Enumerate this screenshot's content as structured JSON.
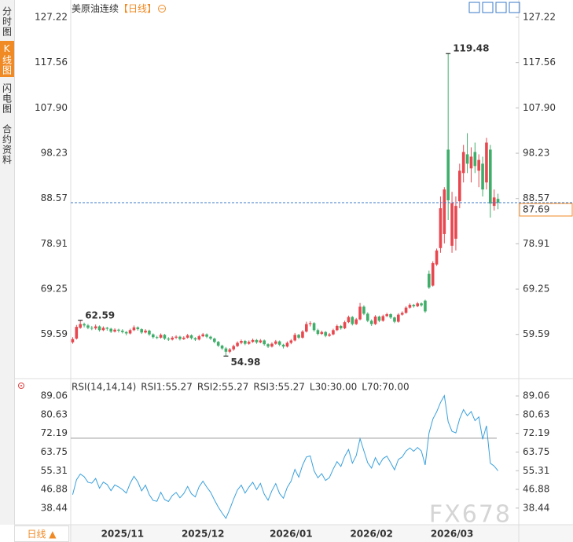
{
  "sidebar": [
    "分时图",
    "K线图",
    "闪电图",
    "合约资料"
  ],
  "period_button": "日线 ▲",
  "watermark": "FX678",
  "chart_data": [
    {
      "type": "candlestick",
      "title": "美原油连续",
      "period": "【日线】",
      "up_color": "#e8474f",
      "down_color": "#3fae6a",
      "last_color": "#f08a24",
      "last_line_color": "#3a78c8",
      "categories": [
        null,
        null,
        null,
        null,
        null,
        null,
        null,
        null,
        null,
        null,
        null,
        null,
        null,
        "2025/11",
        null,
        null,
        null,
        null,
        null,
        null,
        null,
        null,
        null,
        null,
        null,
        null,
        null,
        null,
        null,
        null,
        null,
        null,
        null,
        null,
        "2025/12",
        null,
        null,
        null,
        null,
        null,
        null,
        null,
        null,
        null,
        null,
        null,
        null,
        null,
        null,
        null,
        null,
        null,
        null,
        null,
        null,
        null,
        null,
        "2026/01",
        null,
        null,
        null,
        null,
        null,
        null,
        null,
        null,
        null,
        null,
        null,
        null,
        null,
        null,
        null,
        null,
        null,
        null,
        null,
        null,
        "2026/02",
        null,
        null,
        null,
        null,
        null,
        null,
        null,
        null,
        null,
        null,
        null,
        null,
        null,
        null,
        null,
        null,
        null,
        null,
        null,
        null,
        "2026/03",
        null,
        null,
        null,
        null,
        null,
        null,
        null,
        null,
        null,
        null,
        null,
        null
      ],
      "open": [
        57.9,
        58.7,
        61.0,
        61.8,
        61.5,
        61.0,
        60.9,
        61.3,
        60.5,
        61.0,
        60.8,
        60.2,
        60.6,
        60.4,
        60.1,
        59.8,
        60.5,
        61.1,
        60.7,
        60.0,
        60.4,
        59.6,
        59.0,
        58.9,
        59.5,
        58.7,
        58.5,
        58.9,
        59.1,
        58.6,
        58.9,
        59.4,
        58.8,
        58.5,
        59.2,
        59.6,
        59.1,
        58.7,
        58.0,
        57.2,
        56.6,
        55.9,
        56.4,
        57.1,
        57.8,
        58.2,
        57.6,
        58.0,
        58.4,
        57.9,
        58.3,
        57.5,
        57.0,
        57.6,
        58.1,
        57.4,
        57.0,
        57.8,
        58.3,
        59.5,
        58.9,
        60.2,
        61.8,
        62.0,
        60.5,
        59.7,
        60.1,
        59.3,
        59.6,
        60.5,
        61.4,
        60.9,
        62.2,
        63.3,
        61.8,
        62.8,
        65.5,
        64.0,
        62.5,
        61.8,
        63.4,
        62.5,
        63.5,
        63.9,
        63.2,
        62.3,
        63.8,
        64.2,
        65.3,
        65.9,
        65.6,
        66.2,
        66.8,
        72.5,
        70.0,
        74.5,
        78.0,
        81.0,
        99.0,
        78.5,
        80.0,
        88.0,
        94.0,
        98.0,
        95.0,
        98.5,
        94.5,
        96.0,
        92.0,
        99.0,
        87.0,
        88.5
      ],
      "high": [
        59.0,
        61.6,
        62.59,
        62.1,
        61.8,
        61.4,
        61.7,
        61.5,
        61.3,
        61.2,
        61.0,
        60.9,
        60.8,
        60.7,
        60.3,
        60.8,
        61.5,
        61.3,
        60.9,
        60.7,
        60.6,
        59.8,
        59.3,
        59.8,
        59.7,
        59.0,
        59.2,
        59.4,
        59.3,
        59.2,
        59.7,
        59.6,
        59.0,
        59.5,
        59.9,
        59.8,
        59.3,
        58.9,
        58.2,
        57.4,
        56.9,
        56.7,
        57.4,
        58.1,
        58.5,
        58.4,
        58.3,
        58.7,
        58.6,
        58.6,
        58.5,
        57.7,
        57.9,
        58.4,
        58.3,
        57.6,
        58.1,
        58.6,
        59.9,
        59.7,
        60.5,
        62.3,
        62.4,
        62.2,
        60.8,
        60.4,
        60.3,
        59.9,
        60.8,
        61.7,
        61.6,
        62.5,
        63.6,
        63.5,
        63.1,
        66.3,
        65.8,
        64.3,
        62.8,
        63.7,
        63.6,
        63.8,
        64.2,
        64.1,
        63.4,
        64.1,
        64.5,
        65.6,
        66.2,
        66.1,
        66.5,
        66.4,
        67.0,
        73.2,
        75.2,
        77.9,
        89.0,
        91.0,
        119.48,
        90.0,
        89.0,
        96.0,
        100.0,
        102.5,
        99.5,
        100.5,
        98.0,
        97.5,
        101.5,
        100.0,
        90.5,
        89.6
      ],
      "low": [
        57.6,
        58.5,
        60.8,
        61.1,
        60.7,
        60.5,
        60.6,
        60.2,
        60.3,
        60.4,
        59.9,
        60.0,
        60.0,
        59.8,
        59.4,
        59.6,
        60.3,
        60.4,
        59.7,
        59.8,
        59.3,
        58.7,
        58.6,
        58.7,
        58.4,
        58.2,
        58.3,
        58.6,
        58.3,
        58.4,
        58.7,
        58.5,
        58.2,
        58.3,
        59.0,
        58.8,
        58.4,
        57.7,
        56.9,
        56.3,
        54.98,
        55.6,
        56.1,
        56.9,
        57.5,
        57.3,
        57.4,
        57.8,
        57.6,
        57.7,
        57.2,
        56.7,
        56.8,
        57.4,
        57.1,
        56.6,
        56.8,
        57.5,
        58.1,
        58.6,
        58.7,
        60.0,
        61.3,
        60.2,
        59.4,
        59.5,
        59.0,
        59.1,
        59.4,
        60.3,
        60.6,
        60.7,
        62.0,
        61.5,
        61.6,
        62.6,
        63.7,
        62.2,
        61.4,
        61.6,
        62.2,
        62.3,
        63.3,
        62.9,
        62.0,
        62.1,
        63.6,
        64.0,
        65.1,
        65.3,
        65.4,
        65.5,
        64.2,
        69.3,
        69.8,
        74.2,
        77.0,
        79.0,
        84.0,
        77.0,
        77.5,
        86.5,
        92.0,
        94.0,
        92.0,
        94.0,
        91.0,
        89.0,
        90.5,
        84.5,
        86.0,
        86.3
      ],
      "close": [
        58.6,
        61.2,
        61.8,
        61.5,
        61.0,
        60.9,
        61.3,
        60.5,
        61.0,
        60.8,
        60.2,
        60.6,
        60.4,
        60.1,
        59.8,
        60.5,
        61.1,
        60.7,
        60.0,
        60.4,
        59.6,
        59.0,
        58.9,
        59.5,
        58.7,
        58.5,
        58.9,
        59.1,
        58.6,
        58.9,
        59.4,
        58.8,
        58.5,
        59.2,
        59.6,
        59.1,
        58.7,
        58.0,
        57.2,
        56.6,
        55.9,
        56.4,
        57.1,
        57.8,
        58.2,
        57.6,
        58.0,
        58.4,
        57.9,
        58.3,
        57.5,
        57.0,
        57.6,
        58.1,
        57.4,
        57.0,
        57.8,
        58.3,
        59.5,
        58.9,
        60.2,
        61.8,
        62.0,
        60.5,
        59.7,
        60.1,
        59.3,
        59.6,
        60.5,
        61.4,
        60.9,
        62.2,
        63.3,
        61.8,
        62.8,
        65.5,
        64.0,
        62.5,
        61.8,
        63.4,
        62.5,
        63.5,
        63.9,
        63.2,
        62.3,
        63.8,
        64.2,
        65.3,
        65.9,
        65.6,
        66.2,
        65.8,
        64.5,
        69.6,
        74.8,
        77.5,
        86.5,
        90.5,
        88.2,
        87.6,
        87.0,
        94.5,
        98.5,
        96.0,
        97.5,
        95.5,
        96.8,
        90.5,
        100.5,
        87.5,
        88.8,
        87.69
      ],
      "ylim": [
        50.5,
        130.07
      ],
      "yticks": [
        127.22,
        117.56,
        {
          "value": 107.9,
          "label": "107.90"
        },
        98.23,
        88.57,
        78.91,
        69.25,
        59.59
      ],
      "grid": false
    },
    {
      "type": "line",
      "legend": [
        {
          "text": "RSI(14,14,14)",
          "color": "#333333"
        },
        {
          "text": "RSI1:55.27",
          "color": "#2f8fd8"
        },
        {
          "text": "RSI2:55.27",
          "color": "#4cb86a"
        },
        {
          "text": "RSI3:55.27",
          "color": "#2fa6d8"
        },
        {
          "text": "L30:30.00",
          "color": "#aaaaaa"
        },
        {
          "text": "L70:70.00",
          "color": "#aaaaaa"
        }
      ],
      "color": "#3aa0dc",
      "level": 70,
      "level_color": "#999999",
      "values": [
        44.5,
        51.2,
        53.8,
        52.6,
        50.1,
        49.7,
        51.8,
        47.4,
        50.2,
        49.1,
        46.3,
        48.9,
        48.0,
        46.8,
        45.2,
        49.6,
        52.8,
        50.3,
        46.2,
        48.8,
        44.5,
        41.9,
        41.5,
        45.6,
        42.3,
        41.4,
        44.1,
        45.5,
        43.1,
        45.0,
        48.2,
        44.9,
        43.5,
        48.1,
        50.6,
        47.9,
        45.6,
        42.1,
        38.9,
        36.2,
        33.8,
        37.9,
        42.5,
        46.6,
        48.8,
        45.2,
        47.9,
        50.1,
        46.8,
        49.6,
        44.7,
        42.0,
        46.3,
        49.5,
        45.0,
        42.9,
        47.8,
        50.6,
        55.9,
        52.4,
        57.8,
        61.5,
        62.0,
        55.3,
        52.1,
        54.0,
        50.9,
        52.2,
        56.1,
        59.4,
        57.2,
        61.8,
        64.9,
        58.7,
        62.1,
        69.8,
        64.3,
        58.9,
        56.5,
        61.2,
        57.9,
        60.8,
        61.9,
        58.9,
        55.7,
        60.4,
        61.5,
        64.2,
        65.6,
        64.1,
        65.8,
        64.2,
        57.9,
        72.3,
        78.6,
        81.9,
        86.1,
        89.2,
        77.4,
        73.1,
        72.4,
        78.8,
        82.9,
        80.1,
        82.0,
        77.9,
        79.6,
        69.5,
        75.6,
        58.7,
        57.4,
        55.27
      ],
      "ylim": [
        32,
        90.5
      ],
      "yticks": [
        89.06,
        80.63,
        72.19,
        63.75,
        55.31,
        46.88,
        38.44
      ]
    }
  ]
}
